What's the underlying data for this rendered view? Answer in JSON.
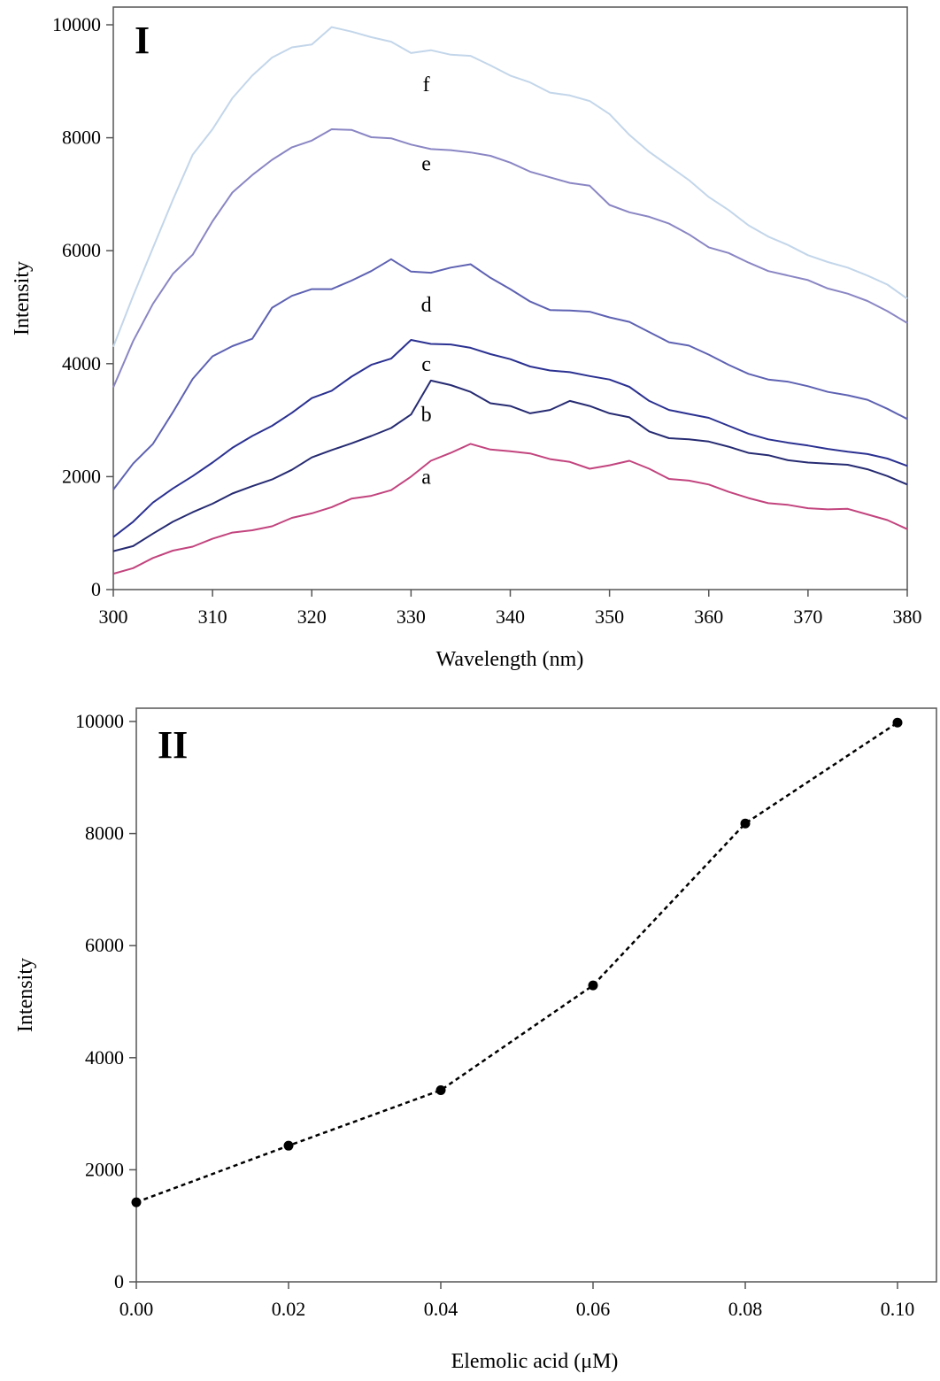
{
  "chart_data": [
    {
      "type": "line",
      "panel_label": "I",
      "xlabel": "Wavelength (nm)",
      "ylabel": "Intensity",
      "xlim": [
        300,
        380
      ],
      "ylim": [
        0,
        10000
      ],
      "xticks": [
        300,
        310,
        320,
        330,
        340,
        350,
        360,
        370,
        380
      ],
      "yticks": [
        0,
        2000,
        4000,
        6000,
        8000,
        10000
      ],
      "grid": false,
      "series": [
        {
          "name": "a",
          "color": "#c2447e",
          "label_at": [
            331,
            2000
          ],
          "x": [
            300,
            302,
            304,
            306,
            308,
            310,
            312,
            314,
            316,
            318,
            320,
            322,
            324,
            326,
            328,
            330,
            332,
            334,
            336,
            338,
            340,
            342,
            344,
            346,
            348,
            350,
            352,
            354,
            356,
            358,
            360,
            362,
            364,
            366,
            368,
            370,
            372,
            374,
            376,
            378,
            380
          ],
          "y": [
            280,
            380,
            560,
            690,
            760,
            900,
            1010,
            1050,
            1120,
            1270,
            1350,
            1460,
            1610,
            1660,
            1760,
            2000,
            2280,
            2420,
            2580,
            2480,
            2450,
            2410,
            2310,
            2260,
            2140,
            2200,
            2280,
            2140,
            1960,
            1930,
            1860,
            1730,
            1620,
            1530,
            1500,
            1440,
            1420,
            1430,
            1330,
            1230,
            1070
          ]
        },
        {
          "name": "b",
          "color": "#262b72",
          "label_at": [
            331,
            3100
          ],
          "x": [
            300,
            302,
            304,
            306,
            308,
            310,
            312,
            314,
            316,
            318,
            320,
            322,
            324,
            326,
            328,
            330,
            332,
            334,
            336,
            338,
            340,
            342,
            344,
            346,
            348,
            350,
            352,
            354,
            356,
            358,
            360,
            362,
            364,
            366,
            368,
            370,
            372,
            374,
            376,
            378,
            380
          ],
          "y": [
            680,
            770,
            990,
            1200,
            1370,
            1520,
            1700,
            1830,
            1950,
            2120,
            2340,
            2470,
            2590,
            2720,
            2860,
            3100,
            3700,
            3620,
            3500,
            3300,
            3250,
            3120,
            3180,
            3340,
            3250,
            3120,
            3050,
            2800,
            2680,
            2660,
            2620,
            2530,
            2420,
            2380,
            2290,
            2250,
            2230,
            2210,
            2130,
            2010,
            1860
          ]
        },
        {
          "name": "c",
          "color": "#2b3191",
          "label_at": [
            331,
            4000
          ],
          "x": [
            300,
            302,
            304,
            306,
            308,
            310,
            312,
            314,
            316,
            318,
            320,
            322,
            324,
            326,
            328,
            330,
            332,
            334,
            336,
            338,
            340,
            342,
            344,
            346,
            348,
            350,
            352,
            354,
            356,
            358,
            360,
            362,
            364,
            366,
            368,
            370,
            372,
            374,
            376,
            378,
            380
          ],
          "y": [
            930,
            1200,
            1540,
            1790,
            2010,
            2250,
            2510,
            2720,
            2900,
            3130,
            3390,
            3520,
            3770,
            3980,
            4090,
            4420,
            4350,
            4340,
            4280,
            4170,
            4080,
            3950,
            3880,
            3850,
            3780,
            3720,
            3590,
            3340,
            3180,
            3110,
            3040,
            2900,
            2760,
            2660,
            2600,
            2550,
            2490,
            2440,
            2400,
            2320,
            2190
          ]
        },
        {
          "name": "d",
          "color": "#5e62b2",
          "label_at": [
            331,
            5050
          ],
          "x": [
            300,
            302,
            304,
            306,
            308,
            310,
            312,
            314,
            316,
            318,
            320,
            322,
            324,
            326,
            328,
            330,
            332,
            334,
            336,
            338,
            340,
            342,
            344,
            346,
            348,
            350,
            352,
            354,
            356,
            358,
            360,
            362,
            364,
            366,
            368,
            370,
            372,
            374,
            376,
            378,
            380
          ],
          "y": [
            1770,
            2230,
            2580,
            3140,
            3730,
            4130,
            4310,
            4440,
            4990,
            5200,
            5320,
            5320,
            5470,
            5640,
            5850,
            5630,
            5610,
            5700,
            5760,
            5520,
            5320,
            5100,
            4950,
            4940,
            4920,
            4820,
            4740,
            4560,
            4380,
            4320,
            4160,
            3980,
            3820,
            3720,
            3680,
            3600,
            3500,
            3440,
            3360,
            3200,
            3020
          ]
        },
        {
          "name": "e",
          "color": "#8a86c4",
          "label_at": [
            331,
            7550
          ],
          "x": [
            300,
            302,
            304,
            306,
            308,
            310,
            312,
            314,
            316,
            318,
            320,
            322,
            324,
            326,
            328,
            330,
            332,
            334,
            336,
            338,
            340,
            342,
            344,
            346,
            348,
            350,
            352,
            354,
            356,
            358,
            360,
            362,
            364,
            366,
            368,
            370,
            372,
            374,
            376,
            378,
            380
          ],
          "y": [
            3580,
            4400,
            5060,
            5590,
            5930,
            6520,
            7030,
            7340,
            7610,
            7830,
            7950,
            8150,
            8140,
            8010,
            7990,
            7880,
            7800,
            7780,
            7740,
            7680,
            7560,
            7400,
            7300,
            7200,
            7150,
            6810,
            6680,
            6600,
            6480,
            6290,
            6060,
            5960,
            5790,
            5640,
            5560,
            5480,
            5330,
            5240,
            5110,
            4930,
            4720
          ]
        },
        {
          "name": "f",
          "color": "#c3d6ea",
          "label_at": [
            331,
            8950
          ],
          "x": [
            300,
            302,
            304,
            306,
            308,
            310,
            312,
            314,
            316,
            318,
            320,
            322,
            324,
            326,
            328,
            330,
            332,
            334,
            336,
            338,
            340,
            342,
            344,
            346,
            348,
            350,
            352,
            354,
            356,
            358,
            360,
            362,
            364,
            366,
            368,
            370,
            372,
            374,
            376,
            378,
            380
          ],
          "y": [
            4300,
            5200,
            6050,
            6900,
            7700,
            8150,
            8700,
            9100,
            9420,
            9600,
            9650,
            9960,
            9880,
            9780,
            9700,
            9500,
            9550,
            9470,
            9450,
            9280,
            9100,
            8980,
            8800,
            8750,
            8650,
            8420,
            8050,
            7750,
            7500,
            7250,
            6950,
            6720,
            6450,
            6250,
            6100,
            5920,
            5800,
            5700,
            5560,
            5400,
            5150
          ]
        }
      ]
    },
    {
      "type": "line",
      "panel_label": "II",
      "xlabel": "Elemolic acid (μM)",
      "ylabel": "Intensity",
      "xlim": [
        0,
        0.1
      ],
      "ylim": [
        0,
        10000
      ],
      "xticks": [
        "0.00",
        "0.02",
        "0.04",
        "0.06",
        "0.08",
        "0.10"
      ],
      "yticks": [
        0,
        2000,
        4000,
        6000,
        8000,
        10000
      ],
      "grid": false,
      "line_style": "dotted",
      "markers": true,
      "x": [
        0.0,
        0.02,
        0.04,
        0.06,
        0.08,
        0.1
      ],
      "y": [
        1420,
        2430,
        3420,
        5290,
        8180,
        9980
      ]
    }
  ]
}
